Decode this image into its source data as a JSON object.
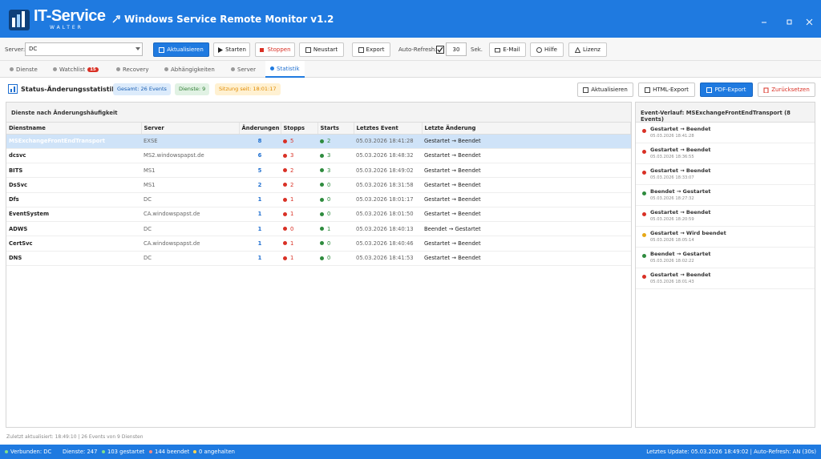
{
  "window": {
    "logo": "IT-Service",
    "logo_sub": "WALTER",
    "title": "Windows Service Remote Monitor v1.2"
  },
  "toolbar": {
    "server_label": "Server:",
    "server": "DC",
    "buttons": [
      "Aktualisieren",
      "Starten",
      "Stoppen",
      "Neustart",
      "Export",
      "E-Mail",
      "Hilfe",
      "Lizenz"
    ],
    "auto_refresh_label": "Auto-Refresh:",
    "interval": "30",
    "unit": "Sek."
  },
  "tabs": {
    "items": [
      "Dienste",
      "Watchlist",
      "Recovery",
      "Abhängigkeiten",
      "Server",
      "Statistik"
    ],
    "watchlist_badge": "15",
    "active": 5
  },
  "header": {
    "title": "Status-Änderungsstatistik",
    "badges": [
      "Gesamt: 26 Events",
      "Dienste: 9",
      "Sitzung seit: 18:01:17"
    ],
    "buttons": [
      "Aktualisieren",
      "HTML-Export",
      "PDF-Export",
      "Zurücksetzen"
    ]
  },
  "table": {
    "title": "Dienste nach Änderungshäufigkeit",
    "columns": [
      "Dienstname",
      "Server",
      "Änderungen",
      "Stopps",
      "Starts",
      "Letztes Event",
      "Letzte Änderung"
    ],
    "selected_row": 0,
    "rows": [
      [
        "MSExchangeFrontEndTransport",
        "EXSE",
        8,
        5,
        2,
        "05.03.2026 18:41:28",
        "Gestartet → Beendet"
      ],
      [
        "dcsvc",
        "MS2.windowspapst.de",
        6,
        3,
        3,
        "05.03.2026 18:48:32",
        "Gestartet → Beendet"
      ],
      [
        "BITS",
        "MS1",
        5,
        2,
        3,
        "05.03.2026 18:49:02",
        "Gestartet → Beendet"
      ],
      [
        "DsSvc",
        "MS1",
        2,
        2,
        0,
        "05.03.2026 18:31:58",
        "Gestartet → Beendet"
      ],
      [
        "Dfs",
        "DC",
        1,
        1,
        0,
        "05.03.2026 18:01:17",
        "Gestartet → Beendet"
      ],
      [
        "EventSystem",
        "CA.windowspapst.de",
        1,
        1,
        0,
        "05.03.2026 18:01:50",
        "Gestartet → Beendet"
      ],
      [
        "ADWS",
        "DC",
        1,
        0,
        1,
        "05.03.2026 18:40:13",
        "Beendet → Gestartet"
      ],
      [
        "CertSvc",
        "CA.windowspapst.de",
        1,
        1,
        0,
        "05.03.2026 18:40:46",
        "Gestartet → Beendet"
      ],
      [
        "DNS",
        "DC",
        1,
        1,
        0,
        "05.03.2026 18:41:53",
        "Gestartet → Beendet"
      ]
    ]
  },
  "events": {
    "title": "Event-Verlauf: MSExchangeFrontEndTransport (8 Events)",
    "items": [
      {
        "change": "Gestartet → Beendet",
        "time": "05.03.2026 18:41:28",
        "color": "#d93025"
      },
      {
        "change": "Gestartet → Beendet",
        "time": "05.03.2026 18:36:55",
        "color": "#d93025"
      },
      {
        "change": "Gestartet → Beendet",
        "time": "05.03.2026 18:33:07",
        "color": "#d93025"
      },
      {
        "change": "Beendet → Gestartet",
        "time": "05.03.2026 18:27:32",
        "color": "#2e8b3e"
      },
      {
        "change": "Gestartet → Beendet",
        "time": "05.03.2026 18:20:59",
        "color": "#d93025"
      },
      {
        "change": "Gestartet → Wird beendet",
        "time": "05.03.2026 18:05:14",
        "color": "#e6a817"
      },
      {
        "change": "Beendet → Gestartet",
        "time": "05.03.2026 18:02:22",
        "color": "#2e8b3e"
      },
      {
        "change": "Gestartet → Beendet",
        "time": "05.03.2026 18:01:43",
        "color": "#d93025"
      }
    ]
  },
  "status_line": "Zuletzt aktualisiert: 18:49:10 | 26 Events von 9 Diensten",
  "statusbar": {
    "connected": "Verbunden: DC",
    "services": "Dienste: 247",
    "started": "103 gestartet",
    "stopped": "144 beendet",
    "paused": "0 angehalten",
    "right": "Letztes Update: 05.03.2026 18:49:02 | Auto-Refresh: AN (30s)"
  }
}
